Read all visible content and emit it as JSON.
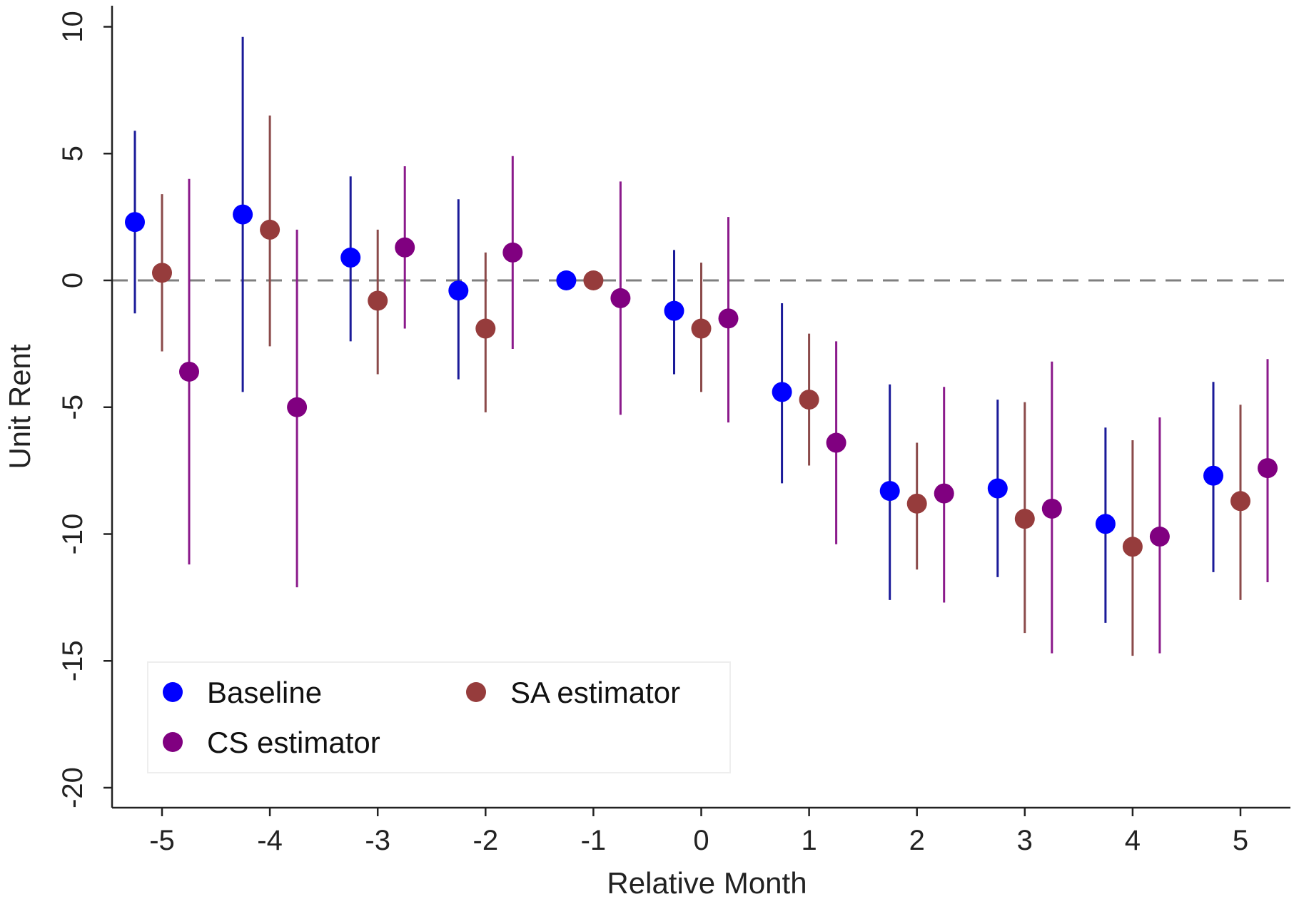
{
  "chart_data": {
    "type": "scatter",
    "subtype": "coefficient plot with confidence intervals",
    "xlabel": "Relative Month",
    "ylabel": "Unit Rent",
    "xlim": [
      -5.5,
      5.5
    ],
    "ylim": [
      -20,
      10
    ],
    "xticks": [
      "-5",
      "-4",
      "-3",
      "-2",
      "-1",
      "0",
      "1",
      "2",
      "3",
      "4",
      "5"
    ],
    "yticks": [
      "10",
      "5",
      "0",
      "-5",
      "-10",
      "-15",
      "-20"
    ],
    "reference_line": {
      "y": 0,
      "style": "dashed",
      "color": "#7f7f7f"
    },
    "grid": false,
    "legend_position": "bottom-left",
    "series": [
      {
        "name": "Baseline",
        "color": "#0000ff",
        "ci_color": "#1a1a99",
        "points": [
          {
            "x": -5,
            "y": 2.3,
            "lo": -1.3,
            "hi": 5.9
          },
          {
            "x": -4,
            "y": 2.6,
            "lo": -4.4,
            "hi": 9.6
          },
          {
            "x": -3,
            "y": 0.9,
            "lo": -2.4,
            "hi": 4.1
          },
          {
            "x": -2,
            "y": -0.4,
            "lo": -3.9,
            "hi": 3.2
          },
          {
            "x": -1,
            "y": 0.0,
            "lo": 0.0,
            "hi": 0.0
          },
          {
            "x": 0,
            "y": -1.2,
            "lo": -3.7,
            "hi": 1.2
          },
          {
            "x": 1,
            "y": -4.4,
            "lo": -8.0,
            "hi": -0.9
          },
          {
            "x": 2,
            "y": -8.3,
            "lo": -12.6,
            "hi": -4.1
          },
          {
            "x": 3,
            "y": -8.2,
            "lo": -11.7,
            "hi": -4.7
          },
          {
            "x": 4,
            "y": -9.6,
            "lo": -13.5,
            "hi": -5.8
          },
          {
            "x": 5,
            "y": -7.7,
            "lo": -11.5,
            "hi": -4.0
          }
        ]
      },
      {
        "name": "SA estimator",
        "color": "#963c3c",
        "ci_color": "#8b4a4a",
        "points": [
          {
            "x": -5,
            "y": 0.3,
            "lo": -2.8,
            "hi": 3.4
          },
          {
            "x": -4,
            "y": 2.0,
            "lo": -2.6,
            "hi": 6.5
          },
          {
            "x": -3,
            "y": -0.8,
            "lo": -3.7,
            "hi": 2.0
          },
          {
            "x": -2,
            "y": -1.9,
            "lo": -5.2,
            "hi": 1.1
          },
          {
            "x": -1,
            "y": 0.0,
            "lo": 0.0,
            "hi": 0.0
          },
          {
            "x": 0,
            "y": -1.9,
            "lo": -4.4,
            "hi": 0.7
          },
          {
            "x": 1,
            "y": -4.7,
            "lo": -7.3,
            "hi": -2.1
          },
          {
            "x": 2,
            "y": -8.8,
            "lo": -11.4,
            "hi": -6.4
          },
          {
            "x": 3,
            "y": -9.4,
            "lo": -13.9,
            "hi": -4.8
          },
          {
            "x": 4,
            "y": -10.5,
            "lo": -14.8,
            "hi": -6.3
          },
          {
            "x": 5,
            "y": -8.7,
            "lo": -12.6,
            "hi": -4.9
          }
        ]
      },
      {
        "name": "CS estimator",
        "color": "#800080",
        "ci_color": "#8b1a8b",
        "points": [
          {
            "x": -5,
            "y": -3.6,
            "lo": -11.2,
            "hi": 4.0
          },
          {
            "x": -4,
            "y": -5.0,
            "lo": -12.1,
            "hi": 2.0
          },
          {
            "x": -3,
            "y": 1.3,
            "lo": -1.9,
            "hi": 4.5
          },
          {
            "x": -2,
            "y": 1.1,
            "lo": -2.7,
            "hi": 4.9
          },
          {
            "x": -1,
            "y": -0.7,
            "lo": -5.3,
            "hi": 3.9
          },
          {
            "x": 0,
            "y": -1.5,
            "lo": -5.6,
            "hi": 2.5
          },
          {
            "x": 1,
            "y": -6.4,
            "lo": -10.4,
            "hi": -2.4
          },
          {
            "x": 2,
            "y": -8.4,
            "lo": -12.7,
            "hi": -4.2
          },
          {
            "x": 3,
            "y": -9.0,
            "lo": -14.7,
            "hi": -3.2
          },
          {
            "x": 4,
            "y": -10.1,
            "lo": -14.7,
            "hi": -5.4
          },
          {
            "x": 5,
            "y": -7.4,
            "lo": -11.9,
            "hi": -3.1
          }
        ]
      }
    ]
  }
}
